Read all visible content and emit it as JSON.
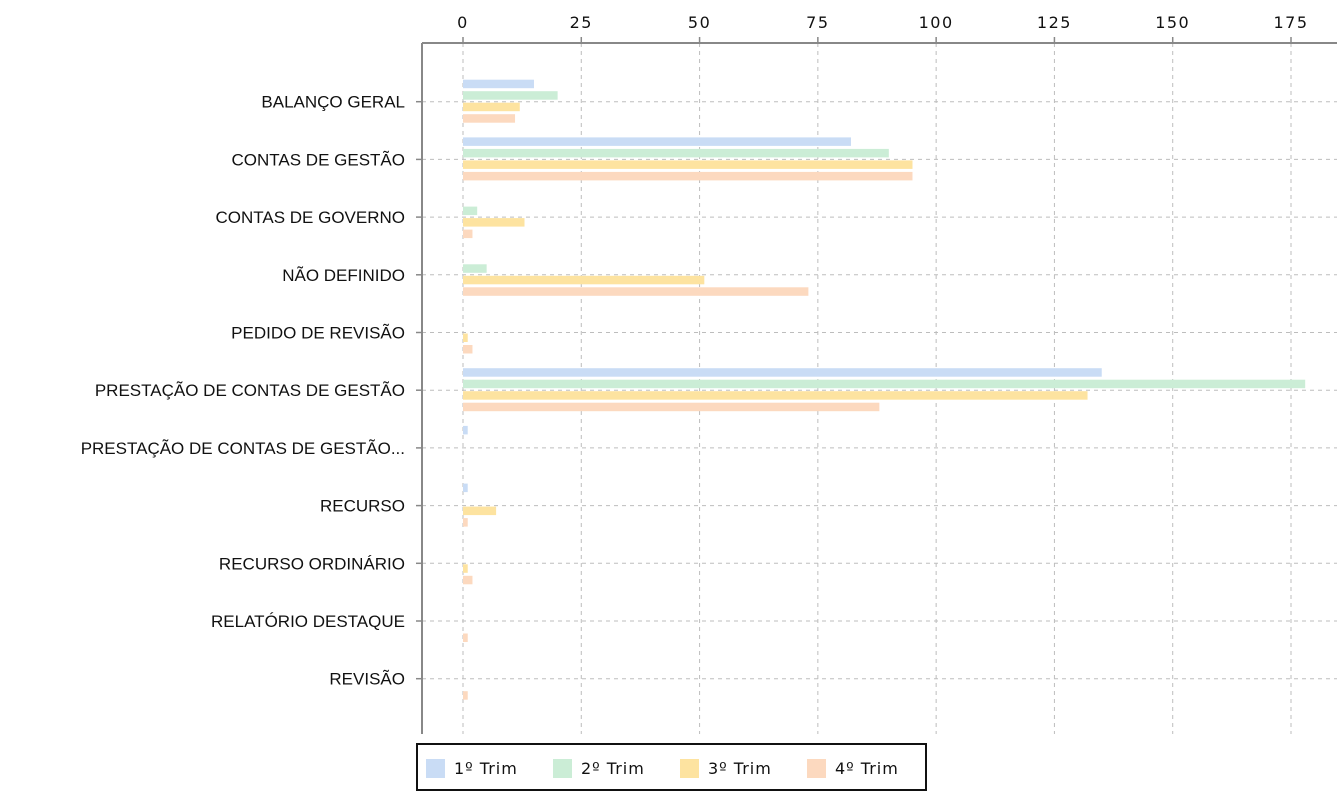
{
  "chart_data": {
    "type": "bar",
    "orientation": "horizontal",
    "categories": [
      "BALANÇO GERAL",
      "CONTAS DE GESTÃO",
      "CONTAS DE GOVERNO",
      "NÃO DEFINIDO",
      "PEDIDO DE REVISÃO",
      "PRESTAÇÃO DE CONTAS DE GESTÃO",
      "PRESTAÇÃO DE CONTAS DE GESTÃO...",
      "RECURSO",
      "RECURSO ORDINÁRIO",
      "RELATÓRIO DESTAQUE",
      "REVISÃO"
    ],
    "series": [
      {
        "name": "1º Trim",
        "color": "#c9dcf5",
        "values": [
          15,
          82,
          0,
          0,
          0,
          135,
          1,
          1,
          0,
          0,
          0
        ]
      },
      {
        "name": "2º Trim",
        "color": "#cbedd6",
        "values": [
          20,
          90,
          3,
          5,
          0,
          178,
          0,
          0,
          0,
          0,
          0
        ]
      },
      {
        "name": "3º Trim",
        "color": "#fde3a0",
        "values": [
          12,
          95,
          13,
          51,
          1,
          132,
          0,
          7,
          1,
          0,
          0
        ]
      },
      {
        "name": "4º Trim",
        "color": "#fcd9bf",
        "values": [
          11,
          95,
          2,
          73,
          2,
          88,
          0,
          1,
          2,
          1,
          1
        ]
      }
    ],
    "x_ticks": [
      "0",
      "25",
      "50",
      "75",
      "100",
      "125",
      "150",
      "175"
    ],
    "xlim": [
      0,
      180
    ],
    "x_axis_position": "top",
    "grid": true,
    "legend_position": "bottom"
  }
}
